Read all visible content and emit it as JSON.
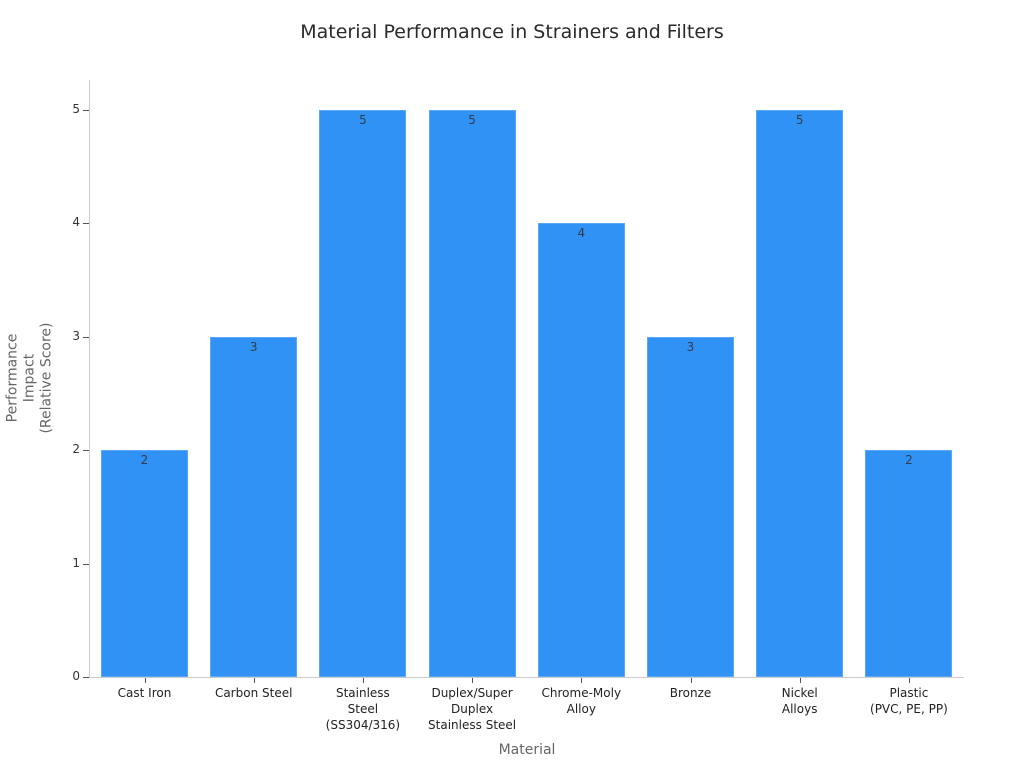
{
  "chart_data": {
    "type": "bar",
    "title": "Material Performance in Strainers and Filters",
    "xlabel": "Material",
    "ylabel": "Performance\nImpact\n(Relative Score)",
    "categories": [
      "Cast Iron",
      "Carbon Steel",
      "Stainless\nSteel\n(SS304/316)",
      "Duplex/Super\nDuplex\nStainless Steel",
      "Chrome-Moly\nAlloy",
      "Bronze",
      "Nickel\nAlloys",
      "Plastic\n(PVC, PE, PP)"
    ],
    "values": [
      2,
      3,
      5,
      5,
      4,
      3,
      5,
      2
    ],
    "ylim": [
      0,
      5.26
    ],
    "yticks": [
      0,
      1,
      2,
      3,
      4,
      5
    ],
    "grid": false,
    "legend": null,
    "bar_color": "#3092f5",
    "data_labels": true
  }
}
